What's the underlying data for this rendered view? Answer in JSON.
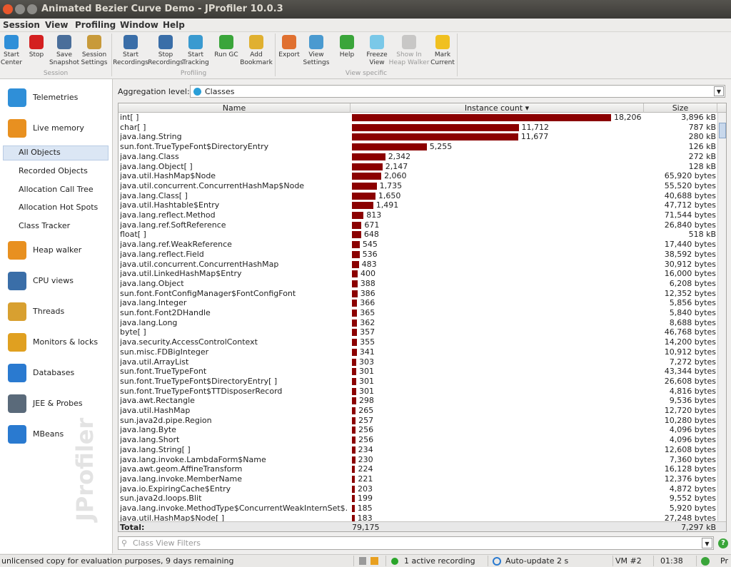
{
  "window": {
    "title": "Animated Bezier Curve Demo - JProfiler 10.0.3"
  },
  "menu": [
    "Session",
    "View",
    "Profiling",
    "Window",
    "Help"
  ],
  "toolbar": {
    "groups": [
      {
        "label": "Session",
        "buttons": [
          {
            "label": [
              "Start",
              "Center"
            ]
          },
          {
            "label": [
              "Stop"
            ]
          },
          {
            "label": [
              "Save",
              "Snapshot"
            ]
          },
          {
            "label": [
              "Session",
              "Settings"
            ]
          }
        ]
      },
      {
        "label": "Profiling",
        "buttons": [
          {
            "label": [
              "Start",
              "Recordings"
            ]
          },
          {
            "label": [
              "Stop",
              "Recordings"
            ]
          },
          {
            "label": [
              "Start",
              "Tracking"
            ]
          },
          {
            "label": [
              "Run GC"
            ]
          },
          {
            "label": [
              "Add",
              "Bookmark"
            ]
          }
        ]
      },
      {
        "label": "View specific",
        "buttons": [
          {
            "label": [
              "Export"
            ]
          },
          {
            "label": [
              "View",
              "Settings"
            ]
          },
          {
            "label": [
              "Help"
            ]
          },
          {
            "label": [
              "Freeze",
              "View"
            ]
          },
          {
            "label": [
              "Show In",
              "Heap Walker"
            ],
            "disabled": true
          },
          {
            "label": [
              "Mark",
              "Current"
            ]
          }
        ]
      }
    ]
  },
  "nav": [
    {
      "label": "Telemetries"
    },
    {
      "label": "Live memory",
      "children": [
        "All Objects",
        "Recorded Objects",
        "Allocation Call Tree",
        "Allocation Hot Spots",
        "Class Tracker"
      ],
      "selected": 0
    },
    {
      "label": "Heap walker"
    },
    {
      "label": "CPU views"
    },
    {
      "label": "Threads"
    },
    {
      "label": "Monitors & locks"
    },
    {
      "label": "Databases"
    },
    {
      "label": "JEE & Probes"
    },
    {
      "label": "MBeans"
    }
  ],
  "watermark": "JProfiler",
  "aggregation": {
    "label": "Aggregation level:",
    "value": "Classes"
  },
  "table": {
    "columns": [
      "Name",
      "Instance count ▾",
      "Size"
    ],
    "rows": [
      {
        "name": "int[ ]",
        "count": 18206,
        "count_label": "18,206",
        "size": "3,896 kB"
      },
      {
        "name": "char[ ]",
        "count": 11712,
        "count_label": "11,712",
        "size": "787 kB"
      },
      {
        "name": "java.lang.String",
        "count": 11677,
        "count_label": "11,677",
        "size": "280 kB"
      },
      {
        "name": "sun.font.TrueTypeFont$DirectoryEntry",
        "count": 5255,
        "count_label": "5,255",
        "size": "126 kB"
      },
      {
        "name": "java.lang.Class",
        "count": 2342,
        "count_label": "2,342",
        "size": "272 kB"
      },
      {
        "name": "java.lang.Object[ ]",
        "count": 2147,
        "count_label": "2,147",
        "size": "128 kB"
      },
      {
        "name": "java.util.HashMap$Node",
        "count": 2060,
        "count_label": "2,060",
        "size": "65,920 bytes"
      },
      {
        "name": "java.util.concurrent.ConcurrentHashMap$Node",
        "count": 1735,
        "count_label": "1,735",
        "size": "55,520 bytes"
      },
      {
        "name": "java.lang.Class[ ]",
        "count": 1650,
        "count_label": "1,650",
        "size": "40,688 bytes"
      },
      {
        "name": "java.util.Hashtable$Entry",
        "count": 1491,
        "count_label": "1,491",
        "size": "47,712 bytes"
      },
      {
        "name": "java.lang.reflect.Method",
        "count": 813,
        "count_label": "813",
        "size": "71,544 bytes"
      },
      {
        "name": "java.lang.ref.SoftReference",
        "count": 671,
        "count_label": "671",
        "size": "26,840 bytes"
      },
      {
        "name": "float[ ]",
        "count": 648,
        "count_label": "648",
        "size": "518 kB"
      },
      {
        "name": "java.lang.ref.WeakReference",
        "count": 545,
        "count_label": "545",
        "size": "17,440 bytes"
      },
      {
        "name": "java.lang.reflect.Field",
        "count": 536,
        "count_label": "536",
        "size": "38,592 bytes"
      },
      {
        "name": "java.util.concurrent.ConcurrentHashMap",
        "count": 483,
        "count_label": "483",
        "size": "30,912 bytes"
      },
      {
        "name": "java.util.LinkedHashMap$Entry",
        "count": 400,
        "count_label": "400",
        "size": "16,000 bytes"
      },
      {
        "name": "java.lang.Object",
        "count": 388,
        "count_label": "388",
        "size": "6,208 bytes"
      },
      {
        "name": "sun.font.FontConfigManager$FontConfigFont",
        "count": 386,
        "count_label": "386",
        "size": "12,352 bytes"
      },
      {
        "name": "java.lang.Integer",
        "count": 366,
        "count_label": "366",
        "size": "5,856 bytes"
      },
      {
        "name": "sun.font.Font2DHandle",
        "count": 365,
        "count_label": "365",
        "size": "5,840 bytes"
      },
      {
        "name": "java.lang.Long",
        "count": 362,
        "count_label": "362",
        "size": "8,688 bytes"
      },
      {
        "name": "byte[ ]",
        "count": 357,
        "count_label": "357",
        "size": "46,768 bytes"
      },
      {
        "name": "java.security.AccessControlContext",
        "count": 355,
        "count_label": "355",
        "size": "14,200 bytes"
      },
      {
        "name": "sun.misc.FDBigInteger",
        "count": 341,
        "count_label": "341",
        "size": "10,912 bytes"
      },
      {
        "name": "java.util.ArrayList",
        "count": 303,
        "count_label": "303",
        "size": "7,272 bytes"
      },
      {
        "name": "sun.font.TrueTypeFont",
        "count": 301,
        "count_label": "301",
        "size": "43,344 bytes"
      },
      {
        "name": "sun.font.TrueTypeFont$DirectoryEntry[ ]",
        "count": 301,
        "count_label": "301",
        "size": "26,608 bytes"
      },
      {
        "name": "sun.font.TrueTypeFont$TTDisposerRecord",
        "count": 301,
        "count_label": "301",
        "size": "4,816 bytes"
      },
      {
        "name": "java.awt.Rectangle",
        "count": 298,
        "count_label": "298",
        "size": "9,536 bytes"
      },
      {
        "name": "java.util.HashMap",
        "count": 265,
        "count_label": "265",
        "size": "12,720 bytes"
      },
      {
        "name": "sun.java2d.pipe.Region",
        "count": 257,
        "count_label": "257",
        "size": "10,280 bytes"
      },
      {
        "name": "java.lang.Byte",
        "count": 256,
        "count_label": "256",
        "size": "4,096 bytes"
      },
      {
        "name": "java.lang.Short",
        "count": 256,
        "count_label": "256",
        "size": "4,096 bytes"
      },
      {
        "name": "java.lang.String[ ]",
        "count": 234,
        "count_label": "234",
        "size": "12,608 bytes"
      },
      {
        "name": "java.lang.invoke.LambdaForm$Name",
        "count": 230,
        "count_label": "230",
        "size": "7,360 bytes"
      },
      {
        "name": "java.awt.geom.AffineTransform",
        "count": 224,
        "count_label": "224",
        "size": "16,128 bytes"
      },
      {
        "name": "java.lang.invoke.MemberName",
        "count": 221,
        "count_label": "221",
        "size": "12,376 bytes"
      },
      {
        "name": "java.io.ExpiringCache$Entry",
        "count": 203,
        "count_label": "203",
        "size": "4,872 bytes"
      },
      {
        "name": "sun.java2d.loops.Blit",
        "count": 199,
        "count_label": "199",
        "size": "9,552 bytes"
      },
      {
        "name": "java.lang.invoke.MethodType$ConcurrentWeakInternSet$...",
        "count": 185,
        "count_label": "185",
        "size": "5,920 bytes"
      },
      {
        "name": "java.util.HashMap$Node[ ]",
        "count": 183,
        "count_label": "183",
        "size": "27,248 bytes"
      }
    ],
    "total": {
      "label": "Total:",
      "count": "79,175",
      "size": "7,297 kB"
    },
    "bar_color": "#8b0000"
  },
  "filter_placeholder": "Class View Filters",
  "status": {
    "license": "unlicensed copy for evaluation purposes, 9 days remaining",
    "recording": "1 active recording",
    "update": "Auto-update 2 s",
    "vm": "VM #2",
    "time": "01:38",
    "tail": "Pr"
  }
}
